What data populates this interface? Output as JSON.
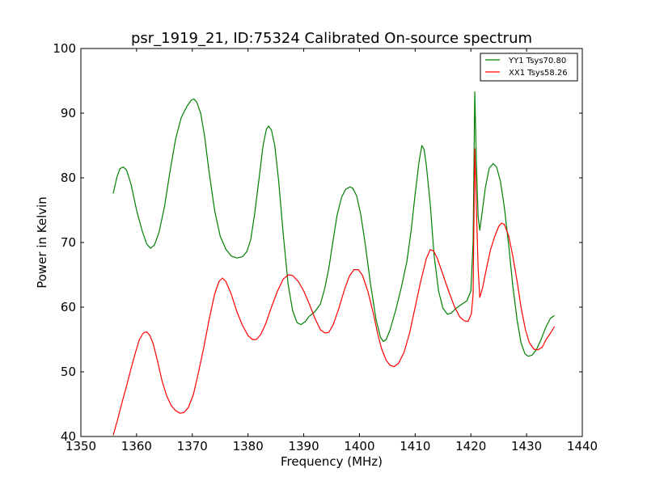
{
  "chart_data": {
    "type": "line",
    "title": "psr_1919_21, ID:75324 Calibrated On-source spectrum",
    "xlabel": "Frequency (MHz)",
    "ylabel": "Power in Kelvin",
    "xlim": [
      1350,
      1440
    ],
    "ylim": [
      40,
      100
    ],
    "xticks": [
      1350,
      1360,
      1370,
      1380,
      1390,
      1400,
      1410,
      1420,
      1430,
      1440
    ],
    "yticks": [
      40,
      50,
      60,
      70,
      80,
      90,
      100
    ],
    "grid": false,
    "legend_position": "top-right",
    "series": [
      {
        "name": "YY1 Tsys70.80",
        "color": "#008000",
        "points": [
          [
            1355.8,
            77.6
          ],
          [
            1356.5,
            80.2
          ],
          [
            1357.0,
            81.4
          ],
          [
            1357.6,
            81.7
          ],
          [
            1358.2,
            81.2
          ],
          [
            1359.0,
            79.0
          ],
          [
            1360.0,
            75.0
          ],
          [
            1361.0,
            71.8
          ],
          [
            1361.8,
            69.8
          ],
          [
            1362.5,
            69.1
          ],
          [
            1363.2,
            69.6
          ],
          [
            1364.0,
            71.5
          ],
          [
            1365.0,
            75.5
          ],
          [
            1366.0,
            81.0
          ],
          [
            1367.0,
            86.0
          ],
          [
            1368.0,
            89.3
          ],
          [
            1369.0,
            91.0
          ],
          [
            1369.8,
            92.0
          ],
          [
            1370.3,
            92.2
          ],
          [
            1370.8,
            91.7
          ],
          [
            1371.5,
            90.0
          ],
          [
            1372.2,
            86.5
          ],
          [
            1373.0,
            81.0
          ],
          [
            1374.0,
            75.0
          ],
          [
            1375.0,
            71.0
          ],
          [
            1376.0,
            69.0
          ],
          [
            1377.0,
            67.9
          ],
          [
            1378.0,
            67.6
          ],
          [
            1379.0,
            67.8
          ],
          [
            1379.8,
            68.6
          ],
          [
            1380.5,
            70.5
          ],
          [
            1381.2,
            74.5
          ],
          [
            1382.0,
            80.0
          ],
          [
            1382.7,
            85.0
          ],
          [
            1383.3,
            87.5
          ],
          [
            1383.7,
            88.0
          ],
          [
            1384.2,
            87.4
          ],
          [
            1384.8,
            85.0
          ],
          [
            1385.5,
            79.5
          ],
          [
            1386.3,
            71.5
          ],
          [
            1387.2,
            63.5
          ],
          [
            1388.0,
            59.5
          ],
          [
            1388.8,
            57.6
          ],
          [
            1389.5,
            57.3
          ],
          [
            1390.3,
            57.8
          ],
          [
            1391.0,
            58.6
          ],
          [
            1392.0,
            59.3
          ],
          [
            1393.0,
            60.5
          ],
          [
            1393.8,
            63.0
          ],
          [
            1394.5,
            66.0
          ],
          [
            1395.3,
            70.5
          ],
          [
            1396.0,
            74.3
          ],
          [
            1396.8,
            77.0
          ],
          [
            1397.5,
            78.2
          ],
          [
            1398.3,
            78.6
          ],
          [
            1398.8,
            78.4
          ],
          [
            1399.5,
            77.2
          ],
          [
            1400.2,
            74.5
          ],
          [
            1401.0,
            70.0
          ],
          [
            1402.0,
            63.5
          ],
          [
            1403.0,
            58.0
          ],
          [
            1403.8,
            55.3
          ],
          [
            1404.3,
            54.7
          ],
          [
            1404.8,
            55.0
          ],
          [
            1405.5,
            56.5
          ],
          [
            1406.5,
            59.5
          ],
          [
            1407.5,
            63.0
          ],
          [
            1408.5,
            67.0
          ],
          [
            1409.3,
            72.0
          ],
          [
            1410.0,
            77.5
          ],
          [
            1410.7,
            82.5
          ],
          [
            1411.2,
            85.0
          ],
          [
            1411.6,
            84.4
          ],
          [
            1412.0,
            82.0
          ],
          [
            1412.7,
            76.0
          ],
          [
            1413.4,
            68.0
          ],
          [
            1414.2,
            62.5
          ],
          [
            1415.0,
            59.8
          ],
          [
            1415.8,
            58.9
          ],
          [
            1416.5,
            59.1
          ],
          [
            1417.3,
            59.8
          ],
          [
            1418.3,
            60.4
          ],
          [
            1419.3,
            61.0
          ],
          [
            1420.0,
            62.5
          ],
          [
            1420.4,
            70.0
          ],
          [
            1420.7,
            93.3
          ],
          [
            1421.0,
            82.0
          ],
          [
            1421.3,
            74.0
          ],
          [
            1421.6,
            71.9
          ],
          [
            1422.0,
            74.5
          ],
          [
            1422.6,
            78.5
          ],
          [
            1423.3,
            81.5
          ],
          [
            1424.0,
            82.2
          ],
          [
            1424.6,
            81.7
          ],
          [
            1425.3,
            79.5
          ],
          [
            1426.0,
            75.5
          ],
          [
            1426.8,
            69.5
          ],
          [
            1427.5,
            63.5
          ],
          [
            1428.3,
            58.0
          ],
          [
            1429.0,
            54.5
          ],
          [
            1429.7,
            52.8
          ],
          [
            1430.3,
            52.4
          ],
          [
            1431.0,
            52.6
          ],
          [
            1431.8,
            53.5
          ],
          [
            1432.6,
            55.0
          ],
          [
            1433.5,
            57.0
          ],
          [
            1434.3,
            58.3
          ],
          [
            1435.0,
            58.7
          ]
        ]
      },
      {
        "name": "XX1 Tsys58.26",
        "color": "#ff0000",
        "points": [
          [
            1355.8,
            40.2
          ],
          [
            1356.5,
            42.3
          ],
          [
            1357.3,
            45.0
          ],
          [
            1358.2,
            47.8
          ],
          [
            1359.0,
            50.5
          ],
          [
            1359.8,
            53.0
          ],
          [
            1360.5,
            55.0
          ],
          [
            1361.2,
            56.0
          ],
          [
            1361.8,
            56.2
          ],
          [
            1362.4,
            55.6
          ],
          [
            1363.0,
            54.3
          ],
          [
            1363.8,
            51.5
          ],
          [
            1364.6,
            48.5
          ],
          [
            1365.4,
            46.3
          ],
          [
            1366.2,
            44.8
          ],
          [
            1367.0,
            44.0
          ],
          [
            1367.8,
            43.6
          ],
          [
            1368.5,
            43.7
          ],
          [
            1369.3,
            44.5
          ],
          [
            1370.2,
            46.5
          ],
          [
            1371.0,
            49.5
          ],
          [
            1372.0,
            53.5
          ],
          [
            1373.0,
            58.0
          ],
          [
            1374.0,
            62.0
          ],
          [
            1374.8,
            64.0
          ],
          [
            1375.4,
            64.5
          ],
          [
            1376.0,
            64.0
          ],
          [
            1377.0,
            62.0
          ],
          [
            1378.0,
            59.3
          ],
          [
            1379.0,
            57.2
          ],
          [
            1380.0,
            55.6
          ],
          [
            1380.8,
            55.0
          ],
          [
            1381.5,
            55.0
          ],
          [
            1382.3,
            55.8
          ],
          [
            1383.2,
            57.5
          ],
          [
            1384.2,
            60.0
          ],
          [
            1385.3,
            62.5
          ],
          [
            1386.3,
            64.3
          ],
          [
            1387.2,
            65.0
          ],
          [
            1388.0,
            64.9
          ],
          [
            1389.0,
            64.0
          ],
          [
            1390.0,
            62.5
          ],
          [
            1391.0,
            60.5
          ],
          [
            1392.0,
            58.3
          ],
          [
            1393.0,
            56.5
          ],
          [
            1393.8,
            56.0
          ],
          [
            1394.5,
            56.1
          ],
          [
            1395.3,
            57.3
          ],
          [
            1396.3,
            59.8
          ],
          [
            1397.3,
            62.7
          ],
          [
            1398.2,
            64.8
          ],
          [
            1399.0,
            65.8
          ],
          [
            1399.8,
            65.8
          ],
          [
            1400.5,
            65.0
          ],
          [
            1401.5,
            62.5
          ],
          [
            1402.5,
            59.0
          ],
          [
            1403.3,
            55.8
          ],
          [
            1404.0,
            53.5
          ],
          [
            1404.8,
            51.8
          ],
          [
            1405.5,
            51.0
          ],
          [
            1406.2,
            50.8
          ],
          [
            1407.0,
            51.3
          ],
          [
            1408.0,
            53.0
          ],
          [
            1409.0,
            56.0
          ],
          [
            1410.0,
            60.0
          ],
          [
            1411.0,
            64.0
          ],
          [
            1412.0,
            67.5
          ],
          [
            1412.7,
            68.9
          ],
          [
            1413.3,
            68.7
          ],
          [
            1414.0,
            67.5
          ],
          [
            1415.0,
            65.0
          ],
          [
            1416.0,
            62.5
          ],
          [
            1417.0,
            60.2
          ],
          [
            1418.0,
            58.5
          ],
          [
            1418.8,
            57.9
          ],
          [
            1419.5,
            57.8
          ],
          [
            1420.1,
            59.0
          ],
          [
            1420.4,
            62.0
          ],
          [
            1420.7,
            84.5
          ],
          [
            1421.0,
            75.0
          ],
          [
            1421.3,
            66.0
          ],
          [
            1421.6,
            61.5
          ],
          [
            1422.1,
            63.0
          ],
          [
            1422.8,
            66.0
          ],
          [
            1423.5,
            68.8
          ],
          [
            1424.3,
            71.0
          ],
          [
            1425.0,
            72.5
          ],
          [
            1425.5,
            73.0
          ],
          [
            1426.0,
            72.8
          ],
          [
            1426.8,
            71.0
          ],
          [
            1427.5,
            68.0
          ],
          [
            1428.3,
            64.0
          ],
          [
            1429.0,
            60.0
          ],
          [
            1429.8,
            56.5
          ],
          [
            1430.5,
            54.5
          ],
          [
            1431.3,
            53.5
          ],
          [
            1432.0,
            53.4
          ],
          [
            1432.8,
            53.8
          ],
          [
            1433.5,
            55.0
          ],
          [
            1434.3,
            56.0
          ],
          [
            1435.0,
            57.0
          ]
        ]
      }
    ]
  }
}
